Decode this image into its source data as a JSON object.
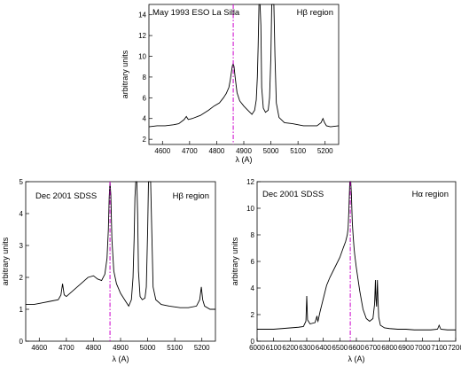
{
  "chart_data": [
    {
      "type": "line",
      "id": "top",
      "left_annotation": "May 1993 ESO La Silla",
      "right_annotation": "Hβ region",
      "xlabel": "λ (A)",
      "ylabel": "arbitrary units",
      "xlim": [
        4550,
        5250
      ],
      "ylim": [
        1.5,
        15
      ],
      "xticks": [
        4600,
        4700,
        4800,
        4900,
        5000,
        5100,
        5200
      ],
      "yticks": [
        2,
        4,
        6,
        8,
        10,
        12,
        14
      ],
      "marker_x": 4861,
      "colors": {
        "line": "#000000",
        "marker": "#cc00cc"
      },
      "x": [
        4550,
        4580,
        4610,
        4640,
        4660,
        4670,
        4680,
        4688,
        4695,
        4710,
        4740,
        4770,
        4790,
        4810,
        4825,
        4835,
        4845,
        4850,
        4855,
        4858,
        4861,
        4864,
        4868,
        4875,
        4885,
        4900,
        4915,
        4930,
        4940,
        4946,
        4950,
        4953,
        4956,
        4960,
        4963,
        4966,
        4972,
        4980,
        4990,
        4995,
        5000,
        5003,
        5007,
        5011,
        5015,
        5020,
        5030,
        5050,
        5080,
        5120,
        5150,
        5170,
        5185,
        5192,
        5198,
        5205,
        5220,
        5250
      ],
      "y": [
        3.2,
        3.3,
        3.3,
        3.4,
        3.5,
        3.7,
        3.9,
        4.2,
        3.9,
        4.0,
        4.3,
        4.8,
        5.2,
        5.5,
        6.0,
        6.4,
        7.0,
        7.7,
        8.6,
        9.1,
        9.3,
        9.0,
        8.0,
        6.5,
        5.7,
        5.2,
        4.8,
        4.4,
        4.8,
        5.8,
        8.0,
        11.0,
        15.0,
        15.0,
        13.0,
        7.0,
        5.0,
        4.6,
        4.8,
        6.0,
        10.0,
        15.0,
        15.0,
        15.0,
        10.0,
        5.5,
        4.1,
        3.6,
        3.5,
        3.3,
        3.3,
        3.3,
        3.6,
        4.0,
        3.6,
        3.3,
        3.2,
        3.3
      ]
    },
    {
      "type": "line",
      "id": "bottom-left",
      "left_annotation": "Dec 2001 SDSS",
      "right_annotation": "Hβ region",
      "xlabel": "λ (A)",
      "ylabel": "arbitrary units",
      "xlim": [
        4550,
        5250
      ],
      "ylim": [
        0,
        5
      ],
      "xticks": [
        4600,
        4700,
        4800,
        4900,
        5000,
        5100,
        5200
      ],
      "yticks": [
        0,
        1,
        2,
        3,
        4,
        5
      ],
      "marker_x": 4861,
      "colors": {
        "line": "#000000",
        "marker": "#cc00cc"
      },
      "x": [
        4550,
        4580,
        4610,
        4640,
        4670,
        4680,
        4686,
        4692,
        4700,
        4720,
        4740,
        4760,
        4780,
        4800,
        4815,
        4830,
        4842,
        4850,
        4855,
        4858,
        4861,
        4864,
        4868,
        4875,
        4885,
        4900,
        4915,
        4930,
        4940,
        4946,
        4950,
        4953,
        4956,
        4960,
        4963,
        4966,
        4972,
        4980,
        4990,
        4995,
        5000,
        5003,
        5007,
        5011,
        5015,
        5020,
        5030,
        5050,
        5080,
        5120,
        5150,
        5180,
        5192,
        5198,
        5203,
        5210,
        5230,
        5250
      ],
      "y": [
        1.15,
        1.15,
        1.2,
        1.25,
        1.3,
        1.45,
        1.8,
        1.45,
        1.4,
        1.55,
        1.7,
        1.85,
        2.0,
        2.05,
        1.95,
        1.9,
        2.1,
        2.6,
        3.5,
        4.5,
        5.0,
        4.6,
        3.2,
        2.2,
        1.8,
        1.5,
        1.3,
        1.1,
        1.3,
        2.0,
        3.2,
        4.5,
        5.0,
        5.0,
        4.0,
        2.2,
        1.4,
        1.3,
        1.35,
        1.7,
        3.5,
        5.0,
        5.0,
        5.0,
        3.5,
        1.7,
        1.3,
        1.15,
        1.1,
        1.05,
        1.05,
        1.1,
        1.3,
        1.7,
        1.3,
        1.1,
        1.0,
        1.0
      ]
    },
    {
      "type": "line",
      "id": "bottom-right",
      "left_annotation": "Dec 2001 SDSS",
      "right_annotation": "Hα region",
      "xlabel": "λ (A)",
      "ylabel": "arbitrary units",
      "xlim": [
        6000,
        7200
      ],
      "ylim": [
        0,
        12
      ],
      "xticks": [
        6000,
        6100,
        6200,
        6300,
        6400,
        6500,
        6600,
        6700,
        6800,
        6900,
        7000,
        7100,
        7200
      ],
      "yticks": [
        0,
        2,
        4,
        6,
        8,
        10,
        12
      ],
      "marker_x": 6563,
      "colors": {
        "line": "#000000",
        "marker": "#cc00cc"
      },
      "x": [
        6000,
        6050,
        6100,
        6150,
        6200,
        6250,
        6280,
        6295,
        6300,
        6305,
        6320,
        6350,
        6362,
        6365,
        6368,
        6380,
        6400,
        6420,
        6440,
        6460,
        6480,
        6500,
        6520,
        6535,
        6545,
        6550,
        6555,
        6560,
        6563,
        6566,
        6570,
        6575,
        6580,
        6583,
        6586,
        6590,
        6600,
        6620,
        6640,
        6660,
        6680,
        6700,
        6710,
        6715,
        6718,
        6722,
        6727,
        6731,
        6735,
        6745,
        6770,
        6800,
        6850,
        6900,
        6950,
        7000,
        7050,
        7090,
        7100,
        7110,
        7150,
        7200
      ],
      "y": [
        0.9,
        0.9,
        0.9,
        0.95,
        1.0,
        1.05,
        1.1,
        1.5,
        3.4,
        1.6,
        1.3,
        1.4,
        1.9,
        1.6,
        1.5,
        2.2,
        3.2,
        4.2,
        4.8,
        5.3,
        5.8,
        6.3,
        7.0,
        7.5,
        8.0,
        8.5,
        10.0,
        12.0,
        12.0,
        12.0,
        11.0,
        9.0,
        8.0,
        7.5,
        7.0,
        6.5,
        5.5,
        3.8,
        2.4,
        1.7,
        1.5,
        1.7,
        2.8,
        4.6,
        3.2,
        2.6,
        4.6,
        3.0,
        1.8,
        1.2,
        1.0,
        0.95,
        0.9,
        0.9,
        0.85,
        0.85,
        0.85,
        0.9,
        1.2,
        0.9,
        0.85,
        0.85
      ]
    }
  ]
}
